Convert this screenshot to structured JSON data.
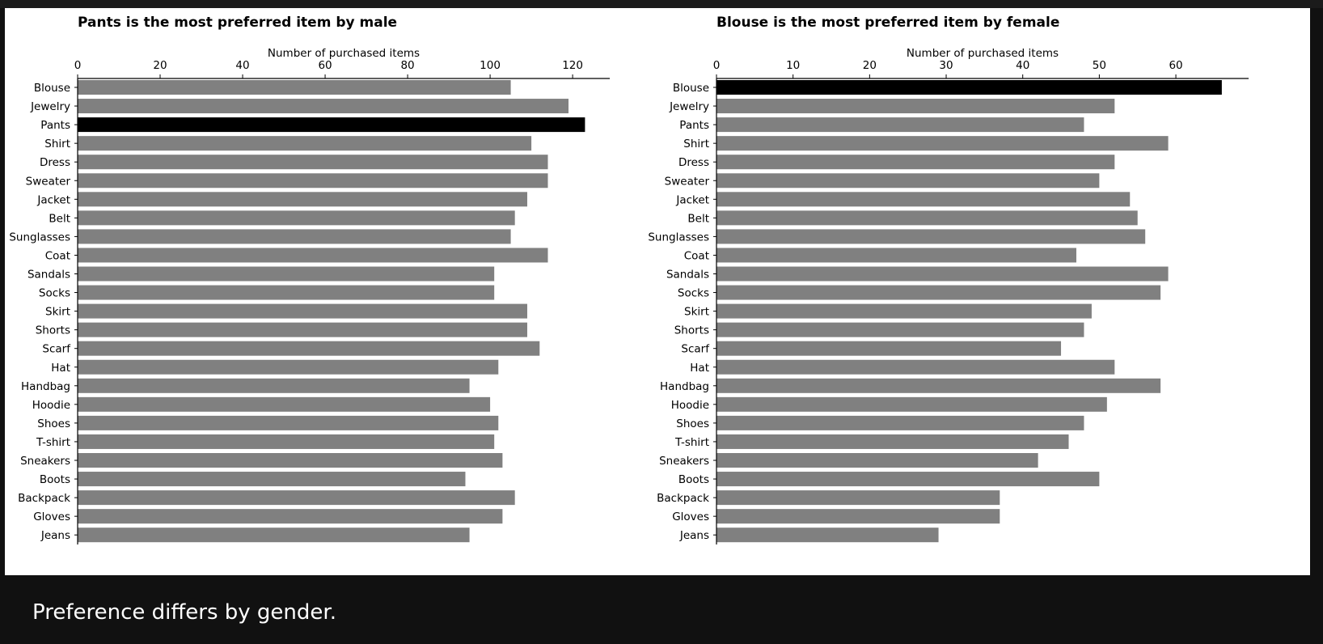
{
  "caption": "Preference differs by gender.",
  "colors": {
    "default_bar": "#808080",
    "highlight_bar": "#000000",
    "background": "#111111",
    "panel": "#ffffff"
  },
  "chart_data": [
    {
      "type": "bar",
      "orientation": "horizontal",
      "title": "Pants is the most preferred item by male",
      "xlabel": "Number of purchased items",
      "ylabel": "",
      "xlim": [
        0,
        129
      ],
      "xticks": [
        0,
        20,
        40,
        60,
        80,
        100,
        120
      ],
      "xaxis_position": "top",
      "grid": false,
      "highlight": "Pants",
      "categories": [
        "Blouse",
        "Jewelry",
        "Pants",
        "Shirt",
        "Dress",
        "Sweater",
        "Jacket",
        "Belt",
        "Sunglasses",
        "Coat",
        "Sandals",
        "Socks",
        "Skirt",
        "Shorts",
        "Scarf",
        "Hat",
        "Handbag",
        "Hoodie",
        "Shoes",
        "T-shirt",
        "Sneakers",
        "Boots",
        "Backpack",
        "Gloves",
        "Jeans"
      ],
      "values": [
        105,
        119,
        123,
        110,
        114,
        114,
        109,
        106,
        105,
        114,
        101,
        101,
        109,
        109,
        112,
        102,
        95,
        100,
        102,
        101,
        103,
        94,
        106,
        103,
        95
      ]
    },
    {
      "type": "bar",
      "orientation": "horizontal",
      "title": "Blouse is the most preferred item by female",
      "xlabel": "Number of purchased items",
      "ylabel": "",
      "xlim": [
        0,
        69.5
      ],
      "xticks": [
        0,
        10,
        20,
        30,
        40,
        50,
        60
      ],
      "xaxis_position": "top",
      "grid": false,
      "highlight": "Blouse",
      "categories": [
        "Blouse",
        "Jewelry",
        "Pants",
        "Shirt",
        "Dress",
        "Sweater",
        "Jacket",
        "Belt",
        "Sunglasses",
        "Coat",
        "Sandals",
        "Socks",
        "Skirt",
        "Shorts",
        "Scarf",
        "Hat",
        "Handbag",
        "Hoodie",
        "Shoes",
        "T-shirt",
        "Sneakers",
        "Boots",
        "Backpack",
        "Gloves",
        "Jeans"
      ],
      "values": [
        66,
        52,
        48,
        59,
        52,
        50,
        54,
        55,
        56,
        47,
        59,
        58,
        49,
        48,
        45,
        52,
        58,
        51,
        48,
        46,
        42,
        50,
        37,
        37,
        29
      ]
    }
  ]
}
